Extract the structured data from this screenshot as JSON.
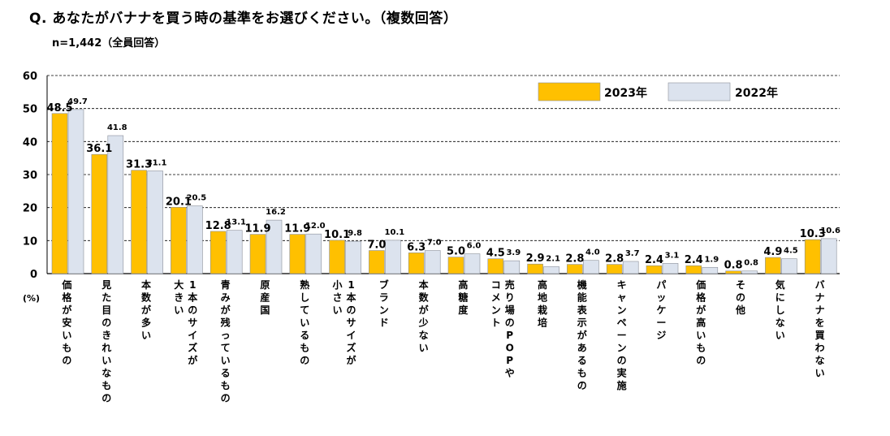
{
  "header": {
    "question": "Q. あなたがバナナを買う時の基準をお選びください。（複数回答）",
    "sample": "n=1,442（全員回答）"
  },
  "colors": {
    "series_2023": "#FFC000",
    "series_2022": "#DCE3EE",
    "bar_stroke": "#8A8F99",
    "grid": "#000000"
  },
  "chart_data": {
    "type": "bar",
    "title": "あなたがバナナを買う時の基準をお選びください。（複数回答）",
    "ylabel": "(%)",
    "xlabel": "",
    "ylim": [
      0,
      60
    ],
    "yticks": [
      0,
      10,
      20,
      30,
      40,
      50,
      60
    ],
    "grid": true,
    "legend": "top-right",
    "categories": [
      "価格が安いもの",
      "見た目のきれいなもの",
      "本数が多い",
      "1本のサイズが大きい",
      "青みが残っているもの",
      "原産国",
      "熟しているもの",
      "1本のサイズが小さい",
      "ブランド",
      "本数が少ない",
      "高糖度",
      "売り場のPOPやコメント",
      "高地栽培",
      "機能表示があるもの",
      "キャンペーンの実施",
      "パッケージ",
      "価格が高いもの",
      "その他",
      "気にしない",
      "バナナを買わない"
    ],
    "category_lines": [
      [
        "価格が安いもの"
      ],
      [
        "見た目のきれいなもの"
      ],
      [
        "本数が多い"
      ],
      [
        "大きい",
        "1本のサイズが"
      ],
      [
        "青みが残っているもの"
      ],
      [
        "原産国"
      ],
      [
        "熟しているもの"
      ],
      [
        "小さい",
        "1本のサイズが"
      ],
      [
        "ブランド"
      ],
      [
        "本数が少ない"
      ],
      [
        "高糖度"
      ],
      [
        "コメント",
        "売り場のPOPや"
      ],
      [
        "高地栽培"
      ],
      [
        "機能表示があるもの"
      ],
      [
        "キャンペーンの実施"
      ],
      [
        "パッケージ"
      ],
      [
        "価格が高いもの"
      ],
      [
        "その他"
      ],
      [
        "気にしない"
      ],
      [
        "バナナを買わない"
      ]
    ],
    "series": [
      {
        "name": "2023年",
        "values": [
          48.5,
          36.1,
          31.3,
          20.1,
          12.8,
          11.9,
          11.9,
          10.1,
          7.0,
          6.3,
          5.0,
          4.5,
          2.9,
          2.8,
          2.8,
          2.4,
          2.4,
          0.8,
          4.9,
          10.3
        ],
        "labels": [
          "48.5",
          "36.1",
          "31.3",
          "20.1",
          "12.8",
          "11.9",
          "11.9",
          "10.1",
          "7.0",
          "6.3",
          "5.0",
          "4.5",
          "2.9",
          "2.8",
          "2.8",
          "2.4",
          "2.4",
          "0.8",
          "4.9",
          "10.3"
        ]
      },
      {
        "name": "2022年",
        "values": [
          49.7,
          41.8,
          31.1,
          20.5,
          13.1,
          16.2,
          12.0,
          9.8,
          10.1,
          7.0,
          6.0,
          3.9,
          2.1,
          4.0,
          3.7,
          3.1,
          1.9,
          0.8,
          4.5,
          10.6
        ],
        "labels": [
          "49.7",
          "41.8",
          "31.1",
          "20.5",
          "13.1",
          "16.2",
          "12.0",
          "9.8",
          "10.1",
          "7.0",
          "6.0",
          "3.9",
          "2.1",
          "4.0",
          "3.7",
          "3.1",
          "1.9",
          "0.8",
          "4.5",
          "10.6"
        ]
      }
    ]
  }
}
